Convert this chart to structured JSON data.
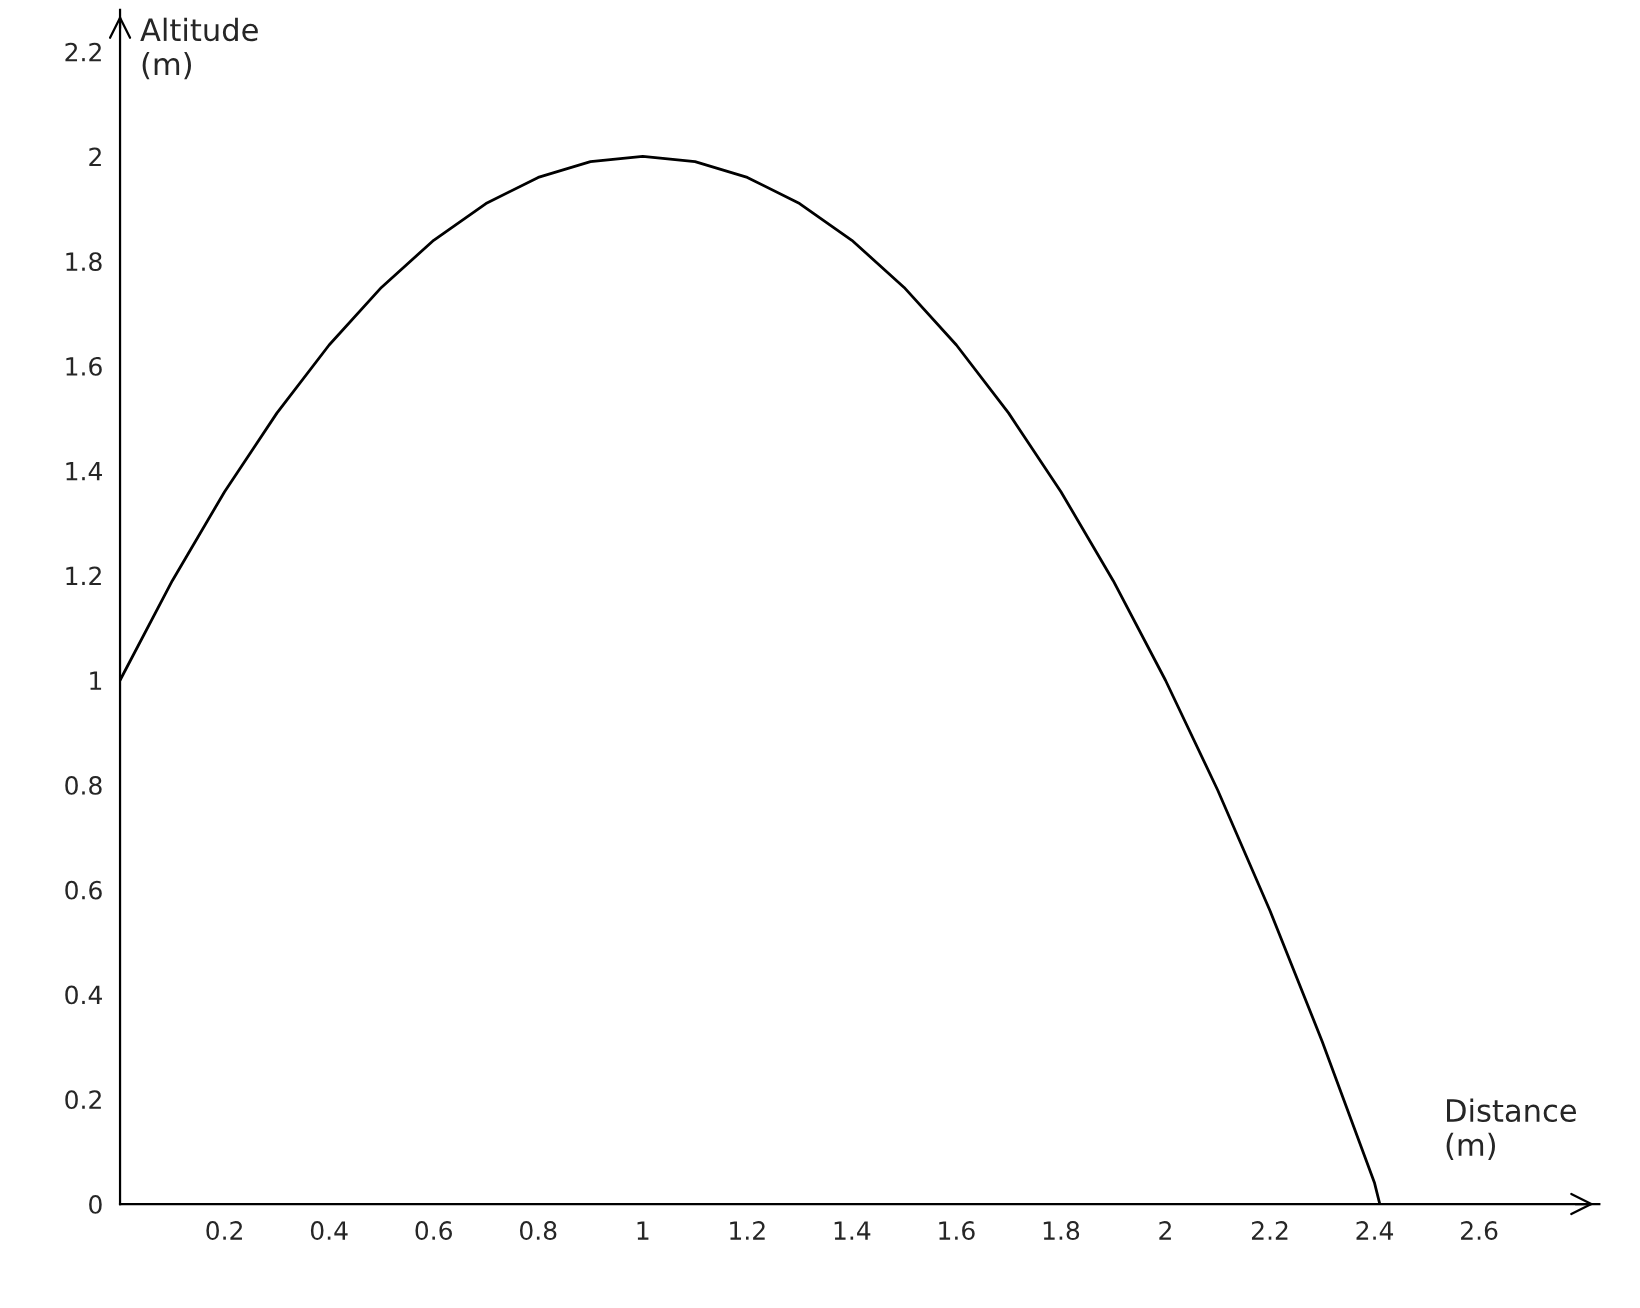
{
  "chart_data": {
    "type": "line",
    "xlabel": "Distance\n(m)",
    "ylabel": "Altitude\n(m)",
    "x": [
      0,
      0.1,
      0.2,
      0.3,
      0.4,
      0.5,
      0.6,
      0.7,
      0.8,
      0.9,
      1.0,
      1.1,
      1.2,
      1.3,
      1.4,
      1.5,
      1.6,
      1.7,
      1.8,
      1.9,
      2.0,
      2.1,
      2.2,
      2.3,
      2.4,
      2.41
    ],
    "series": [
      {
        "color": "#000000",
        "values": [
          1,
          1.19,
          1.36,
          1.51,
          1.64,
          1.75,
          1.84,
          1.91,
          1.96,
          1.99,
          2,
          1.99,
          1.96,
          1.91,
          1.84,
          1.75,
          1.64,
          1.51,
          1.36,
          1.19,
          1,
          0.79,
          0.56,
          0.31,
          0.04,
          0
        ]
      }
    ],
    "xlim": [
      0,
      2.83
    ],
    "ylim": [
      0,
      2.28
    ],
    "xticks": [
      0.2,
      0.4,
      0.6,
      0.8,
      1,
      1.2,
      1.4,
      1.6,
      1.8,
      2,
      2.2,
      2.4,
      2.6
    ],
    "yticks": [
      0,
      0.2,
      0.4,
      0.6,
      0.8,
      1,
      1.2,
      1.4,
      1.6,
      1.8,
      2,
      2.2
    ],
    "grid": false,
    "legend": false,
    "marker": "none",
    "line_style": "solid"
  }
}
